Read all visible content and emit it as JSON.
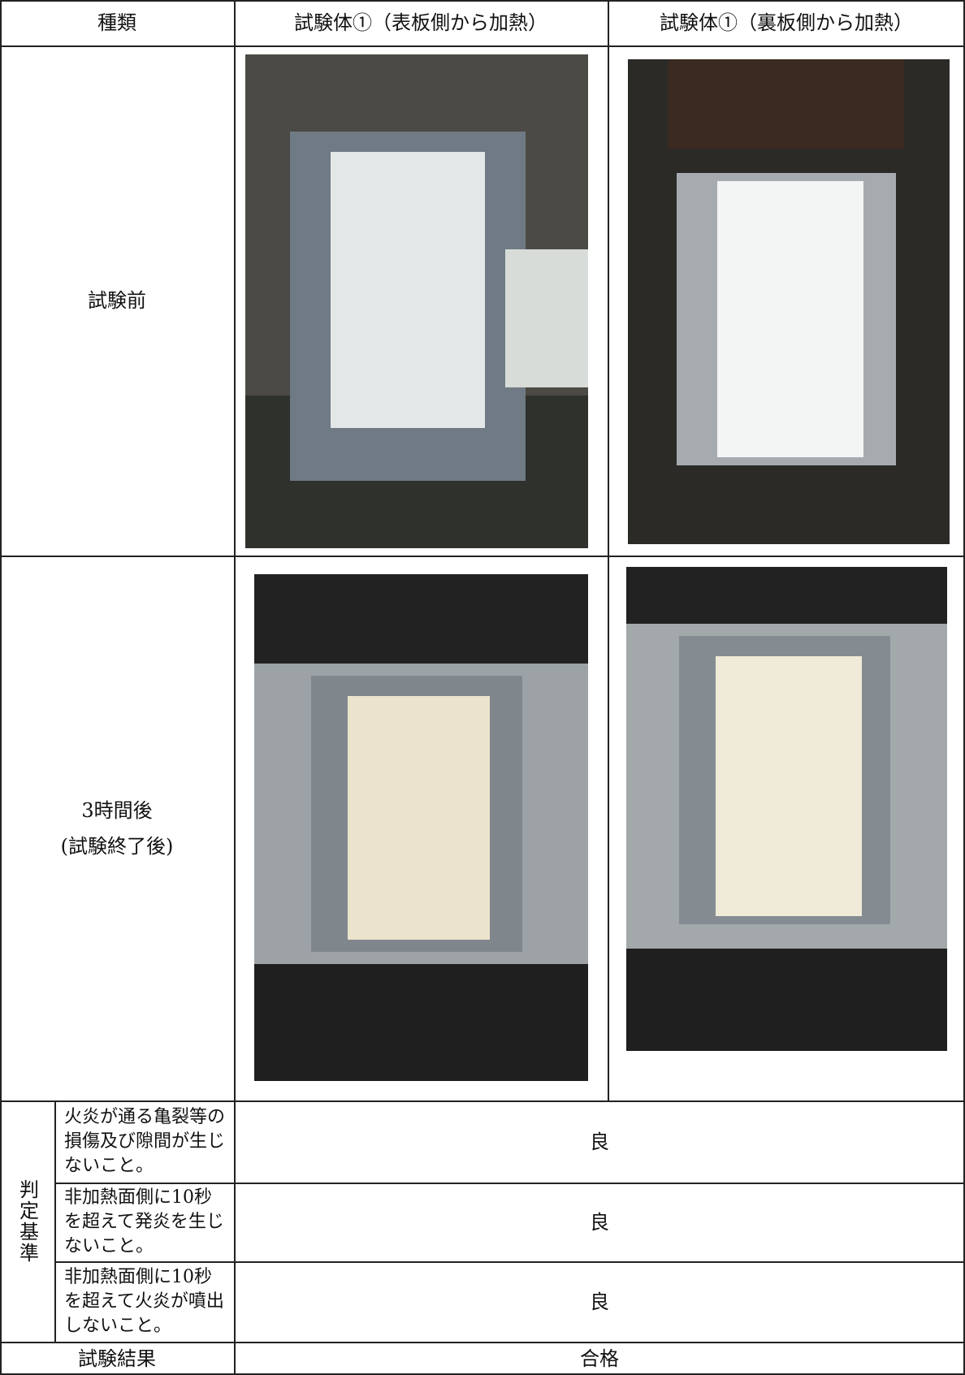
{
  "table": {
    "header": [
      "種類",
      "試験体①（表板側から加熱）",
      "試験体①（裏板側から加熱）"
    ],
    "rows": [
      {
        "label": [
          "試験前"
        ]
      },
      {
        "label": [
          "3時間後",
          "(試験終了後)"
        ]
      }
    ],
    "criteria": {
      "label": "判定基準",
      "items": [
        {
          "text": "火炎が通る亀裂等の損傷及び隙間が生じないこと。",
          "result": "良"
        },
        {
          "text": "非加熱面側に10秒を超えて発炎を生じないこと。",
          "result": "良"
        },
        {
          "text": "非加熱面側に10秒を超えて火炎が噴出しないこと。",
          "result": "良"
        }
      ]
    },
    "result": {
      "label": "試験結果",
      "value": "合格"
    }
  }
}
